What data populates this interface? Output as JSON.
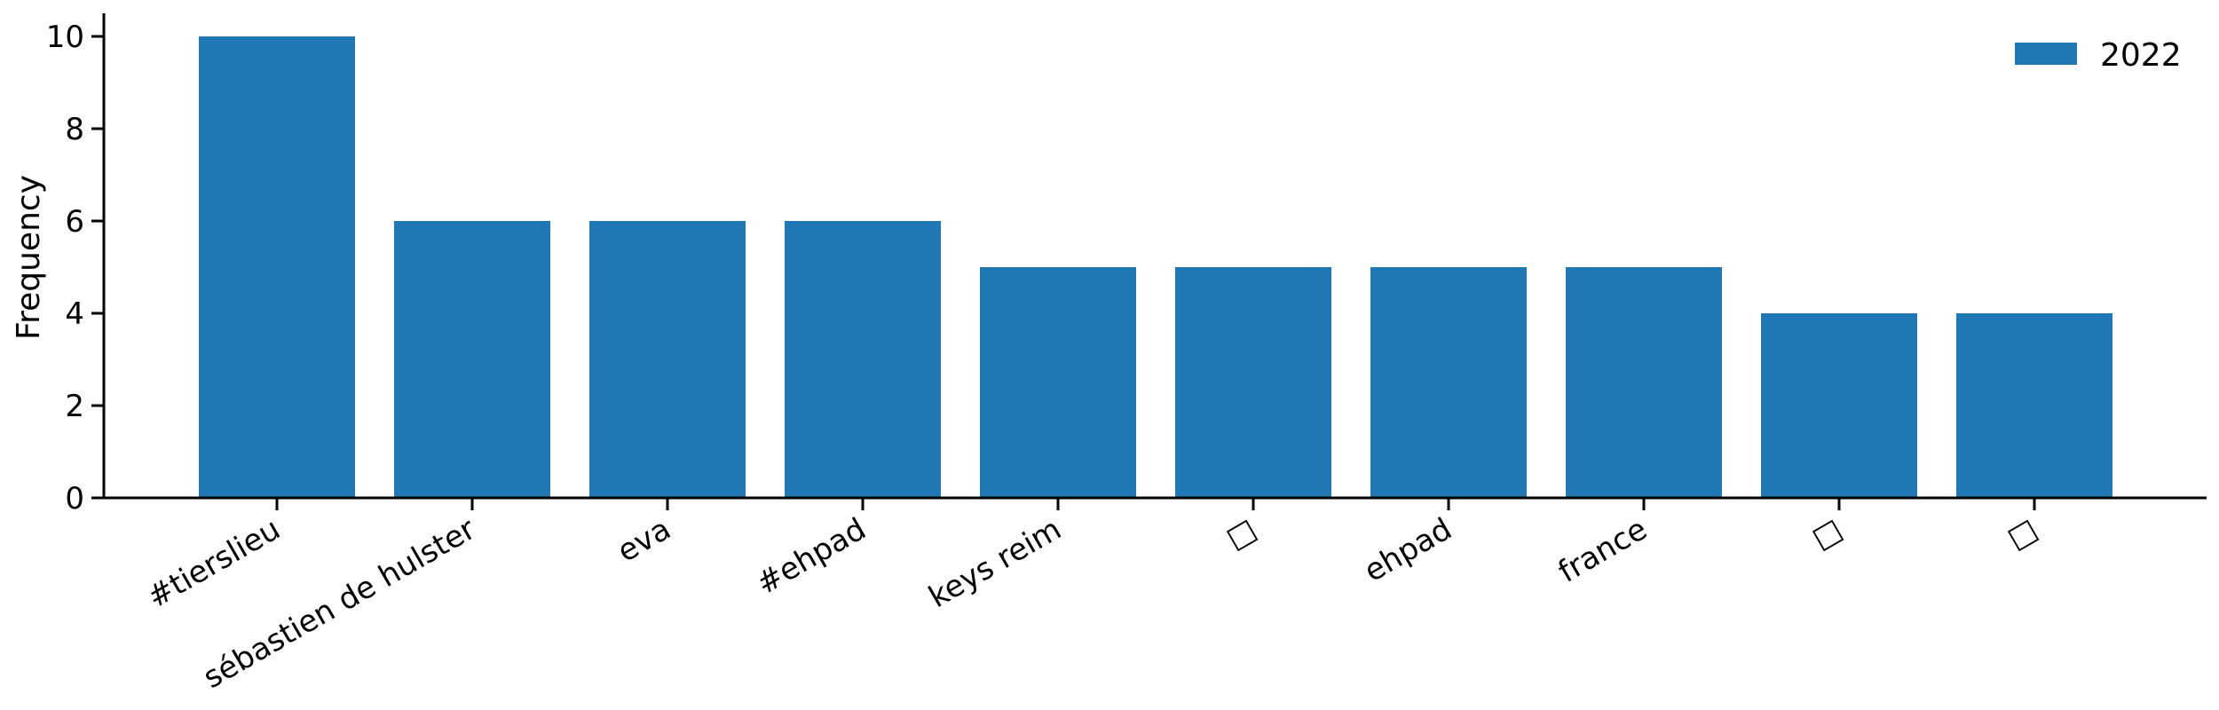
{
  "chart_data": {
    "type": "bar",
    "categories": [
      "#tierslieu",
      "sébastien de hulster",
      "eva",
      "#ehpad",
      "keys reim",
      "□",
      "ehpad",
      "france",
      "□",
      "□"
    ],
    "series": [
      {
        "name": "2022",
        "values": [
          10,
          6,
          6,
          6,
          5,
          5,
          5,
          5,
          4,
          4
        ],
        "color": "#1f77b4"
      }
    ],
    "ylabel": "Frequency",
    "xlabel": "",
    "ylim": [
      0,
      10.5
    ],
    "yticks": [
      0,
      2,
      4,
      6,
      8,
      10
    ],
    "grid": false,
    "legend_position": "top-right",
    "xtick_rotation": -30
  }
}
